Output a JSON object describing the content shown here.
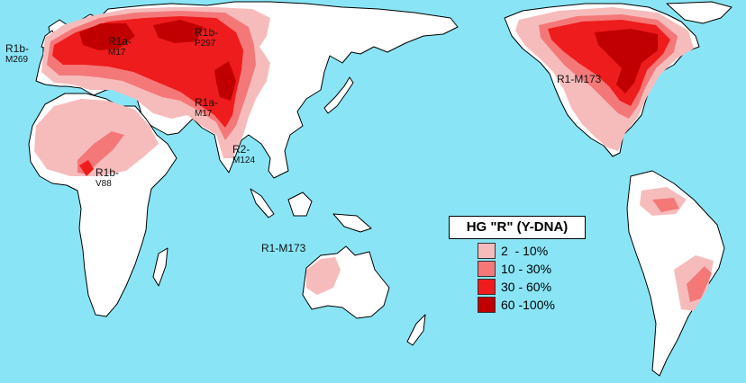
{
  "map": {
    "ocean_color": "#89e5f6",
    "land_color": "#ffffff",
    "labels": [
      {
        "name": "R1b",
        "sub": "M269"
      },
      {
        "name": "R1a",
        "sub": "M17"
      },
      {
        "name": "R1b",
        "sub": "P297"
      },
      {
        "name": "R1a",
        "sub": "M17"
      },
      {
        "name": "R2",
        "sub": "M124"
      },
      {
        "name": "R1b",
        "sub": "V88"
      },
      {
        "name": "R1-M173",
        "sub": ""
      },
      {
        "name": "R1-M173",
        "sub": ""
      }
    ]
  },
  "legend": {
    "title": "HG  \"R\" (Y-DNA)",
    "items": [
      {
        "label": "2  - 10%",
        "color": "#f6bcbc"
      },
      {
        "label": "10 - 30%",
        "color": "#f47878"
      },
      {
        "label": "30 - 60%",
        "color": "#ee1c1c"
      },
      {
        "label": "60 -100%",
        "color": "#c00000"
      }
    ]
  }
}
